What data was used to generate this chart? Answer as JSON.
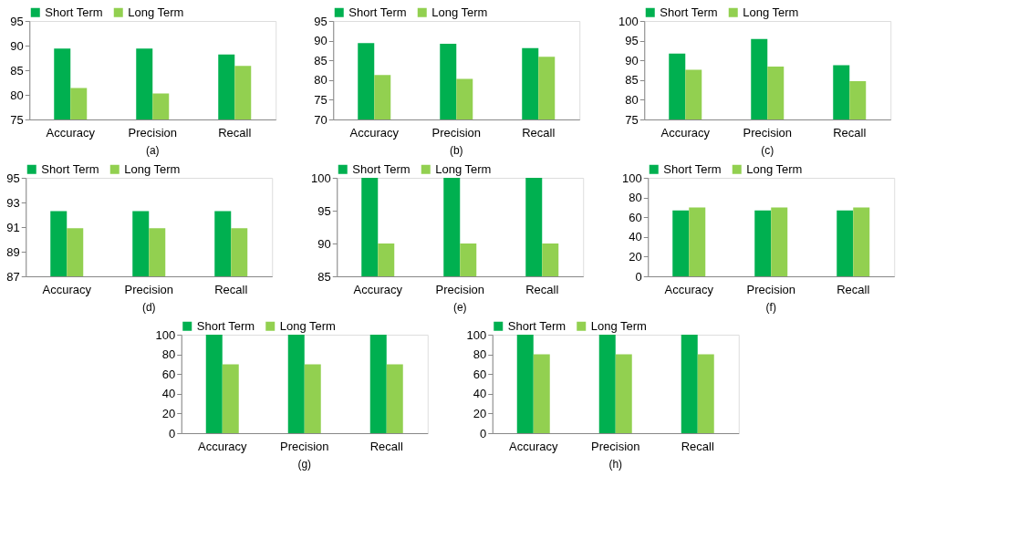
{
  "chart_data": [
    {
      "type": "bar",
      "title": "(a)",
      "categories": [
        "Accuracy",
        "Precision",
        "Recall"
      ],
      "series": [
        {
          "name": "Short Term",
          "color": "#00b050",
          "values": [
            89.4,
            89.4,
            88.2
          ]
        },
        {
          "name": "Long Term",
          "color": "#92d050",
          "values": [
            81.4,
            80.3,
            85.9
          ]
        }
      ],
      "ylim": [
        75,
        95
      ],
      "yticks": [
        75,
        80,
        85,
        90,
        95
      ],
      "grid": false,
      "legend": "top"
    },
    {
      "type": "bar",
      "title": "(b)",
      "categories": [
        "Accuracy",
        "Precision",
        "Recall"
      ],
      "series": [
        {
          "name": "Short Term",
          "color": "#00b050",
          "values": [
            89.4,
            89.2,
            88.1
          ]
        },
        {
          "name": "Long Term",
          "color": "#92d050",
          "values": [
            81.3,
            80.3,
            85.9
          ]
        }
      ],
      "ylim": [
        70,
        95
      ],
      "yticks": [
        70,
        75,
        80,
        85,
        90,
        95
      ],
      "grid": false,
      "legend": "top"
    },
    {
      "type": "bar",
      "title": "(c)",
      "categories": [
        "Accuracy",
        "Precision",
        "Recall"
      ],
      "series": [
        {
          "name": "Short Term",
          "color": "#00b050",
          "values": [
            91.7,
            95.4,
            88.8
          ]
        },
        {
          "name": "Long Term",
          "color": "#92d050",
          "values": [
            87.6,
            88.4,
            84.7
          ]
        }
      ],
      "ylim": [
        75,
        100
      ],
      "yticks": [
        75,
        80,
        85,
        90,
        95,
        100
      ],
      "grid": false,
      "legend": "top"
    },
    {
      "type": "bar",
      "title": "(d)",
      "categories": [
        "Accuracy",
        "Precision",
        "Recall"
      ],
      "series": [
        {
          "name": "Short Term",
          "color": "#00b050",
          "values": [
            92.3,
            92.3,
            92.3
          ]
        },
        {
          "name": "Long Term",
          "color": "#92d050",
          "values": [
            90.9,
            90.9,
            90.9
          ]
        }
      ],
      "ylim": [
        87,
        95
      ],
      "yticks": [
        87,
        89,
        91,
        93,
        95
      ],
      "grid": false,
      "legend": "top"
    },
    {
      "type": "bar",
      "title": "(e)",
      "categories": [
        "Accuracy",
        "Precision",
        "Recall"
      ],
      "series": [
        {
          "name": "Short Term",
          "color": "#00b050",
          "values": [
            100,
            100,
            100
          ]
        },
        {
          "name": "Long Term",
          "color": "#92d050",
          "values": [
            90,
            90,
            90
          ]
        }
      ],
      "ylim": [
        85,
        100
      ],
      "yticks": [
        85,
        90,
        95,
        100
      ],
      "grid": false,
      "legend": "top"
    },
    {
      "type": "bar",
      "title": "(f)",
      "categories": [
        "Accuracy",
        "Precision",
        "Recall"
      ],
      "series": [
        {
          "name": "Short Term",
          "color": "#00b050",
          "values": [
            67,
            67,
            67
          ]
        },
        {
          "name": "Long Term",
          "color": "#92d050",
          "values": [
            70,
            70,
            70
          ]
        }
      ],
      "ylim": [
        0,
        100
      ],
      "yticks": [
        0,
        20,
        40,
        60,
        80,
        100
      ],
      "grid": false,
      "legend": "top"
    },
    {
      "type": "bar",
      "title": "(g)",
      "categories": [
        "Accuracy",
        "Precision",
        "Recall"
      ],
      "series": [
        {
          "name": "Short Term",
          "color": "#00b050",
          "values": [
            100,
            100,
            100
          ]
        },
        {
          "name": "Long Term",
          "color": "#92d050",
          "values": [
            70,
            70,
            70
          ]
        }
      ],
      "ylim": [
        0,
        100
      ],
      "yticks": [
        0,
        20,
        40,
        60,
        80,
        100
      ],
      "grid": false,
      "legend": "top"
    },
    {
      "type": "bar",
      "title": "(h)",
      "categories": [
        "Accuracy",
        "Precision",
        "Recall"
      ],
      "series": [
        {
          "name": "Short Term",
          "color": "#00b050",
          "values": [
            100,
            100,
            100
          ]
        },
        {
          "name": "Long Term",
          "color": "#92d050",
          "values": [
            80,
            80,
            80
          ]
        }
      ],
      "ylim": [
        0,
        100
      ],
      "yticks": [
        0,
        20,
        40,
        60,
        80,
        100
      ],
      "grid": false,
      "legend": "top"
    }
  ]
}
